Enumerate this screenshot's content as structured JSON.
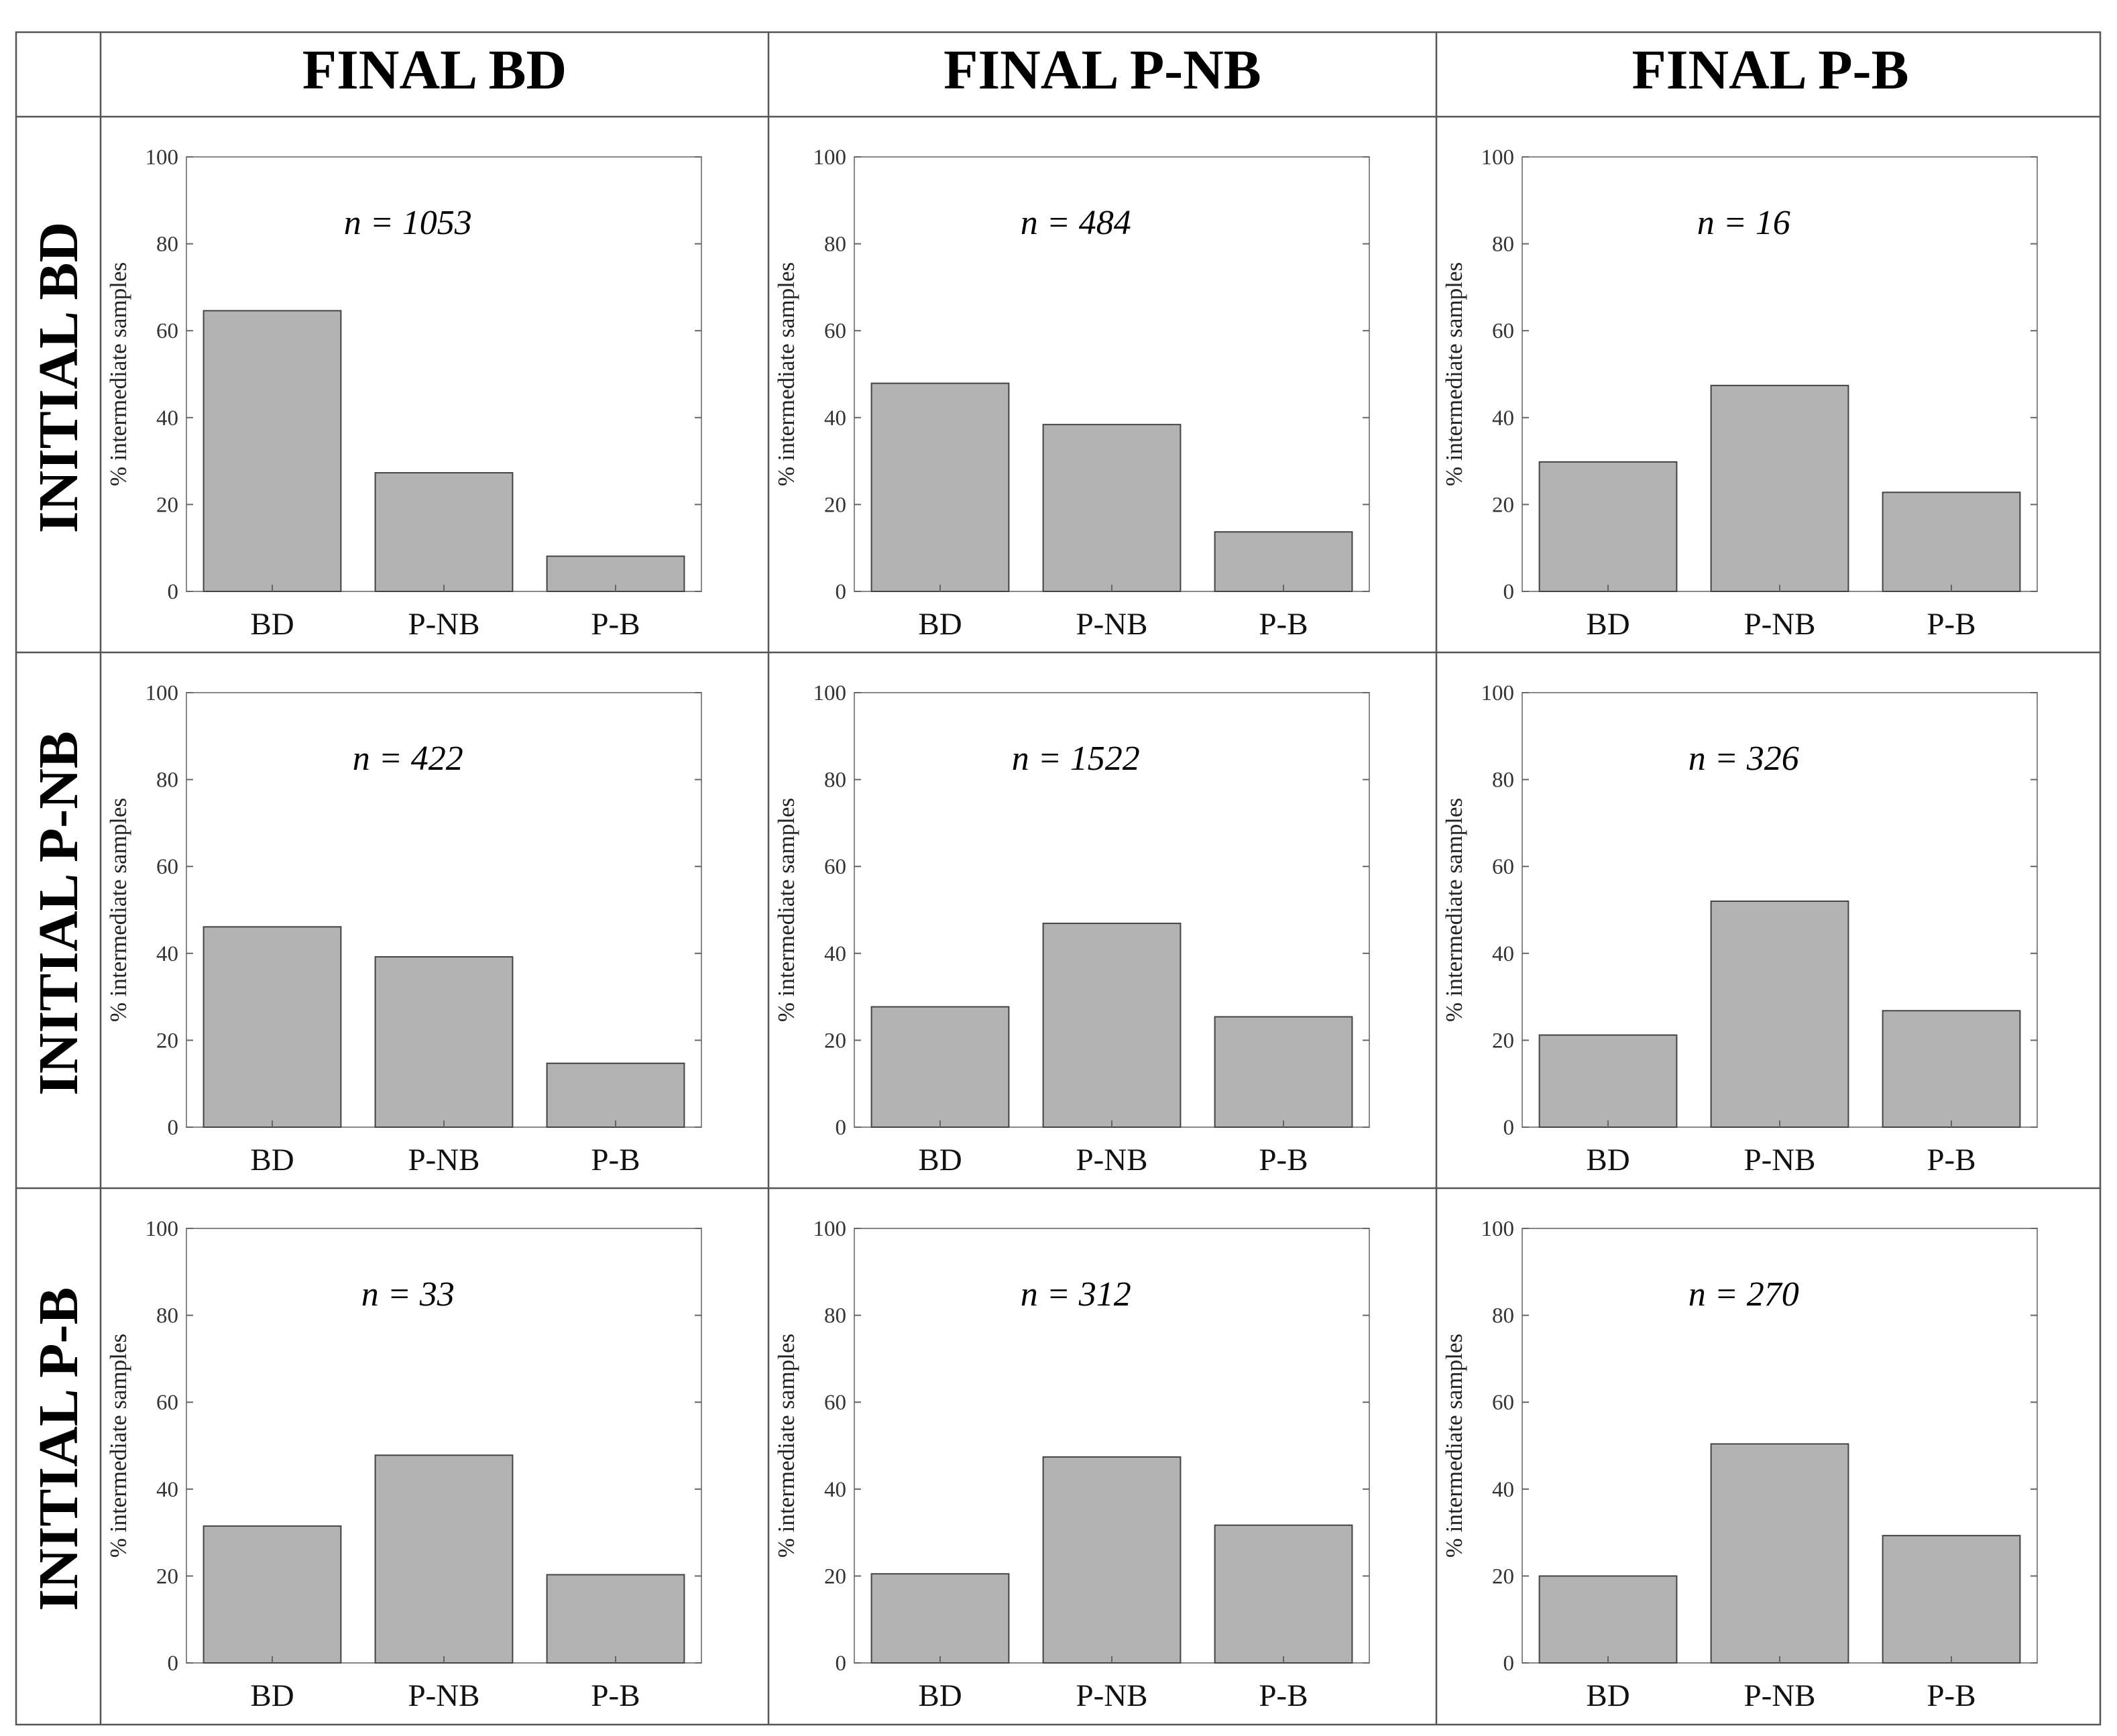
{
  "col_headers": [
    "FINAL BD",
    "FINAL P-NB",
    "FINAL P-B"
  ],
  "row_headers": [
    "INITIAL BD",
    "INITIAL P-NB",
    "INITIAL P-B"
  ],
  "chart_data": [
    {
      "type": "bar",
      "row": "INITIAL BD",
      "col": "FINAL BD",
      "annotation": "n = 1053",
      "categories": [
        "BD",
        "P-NB",
        "P-B"
      ],
      "values": [
        64.6,
        27.3,
        8.1
      ],
      "ylabel": "% intermediate samples",
      "ylim": [
        0,
        100
      ],
      "yticks": [
        "0",
        "20",
        "40",
        "60",
        "80",
        "100"
      ]
    },
    {
      "type": "bar",
      "row": "INITIAL BD",
      "col": "FINAL P-NB",
      "annotation": "n = 484",
      "categories": [
        "BD",
        "P-NB",
        "P-B"
      ],
      "values": [
        47.9,
        38.4,
        13.7
      ],
      "ylabel": "% intermediate samples",
      "ylim": [
        0,
        100
      ],
      "yticks": [
        "0",
        "20",
        "40",
        "60",
        "80",
        "100"
      ]
    },
    {
      "type": "bar",
      "row": "INITIAL BD",
      "col": "FINAL P-B",
      "annotation": "n = 16",
      "categories": [
        "BD",
        "P-NB",
        "P-B"
      ],
      "values": [
        29.8,
        47.4,
        22.8
      ],
      "ylabel": "% intermediate samples",
      "ylim": [
        0,
        100
      ],
      "yticks": [
        "0",
        "20",
        "40",
        "60",
        "80",
        "100"
      ]
    },
    {
      "type": "bar",
      "row": "INITIAL P-NB",
      "col": "FINAL BD",
      "annotation": "n = 422",
      "categories": [
        "BD",
        "P-NB",
        "P-B"
      ],
      "values": [
        46.1,
        39.2,
        14.7
      ],
      "ylabel": "% intermediate samples",
      "ylim": [
        0,
        100
      ],
      "yticks": [
        "0",
        "20",
        "40",
        "60",
        "80",
        "100"
      ]
    },
    {
      "type": "bar",
      "row": "INITIAL P-NB",
      "col": "FINAL P-NB",
      "annotation": "n = 1522",
      "categories": [
        "BD",
        "P-NB",
        "P-B"
      ],
      "values": [
        27.7,
        46.9,
        25.4
      ],
      "ylabel": "% intermediate samples",
      "ylim": [
        0,
        100
      ],
      "yticks": [
        "0",
        "20",
        "40",
        "60",
        "80",
        "100"
      ]
    },
    {
      "type": "bar",
      "row": "INITIAL P-NB",
      "col": "FINAL P-B",
      "annotation": "n = 326",
      "categories": [
        "BD",
        "P-NB",
        "P-B"
      ],
      "values": [
        21.2,
        52.0,
        26.8
      ],
      "ylabel": "% intermediate samples",
      "ylim": [
        0,
        100
      ],
      "yticks": [
        "0",
        "20",
        "40",
        "60",
        "80",
        "100"
      ]
    },
    {
      "type": "bar",
      "row": "INITIAL P-B",
      "col": "FINAL BD",
      "annotation": "n = 33",
      "categories": [
        "BD",
        "P-NB",
        "P-B"
      ],
      "values": [
        31.5,
        47.8,
        20.3
      ],
      "ylabel": "% intermediate samples",
      "ylim": [
        0,
        100
      ],
      "yticks": [
        "0",
        "20",
        "40",
        "60",
        "80",
        "100"
      ]
    },
    {
      "type": "bar",
      "row": "INITIAL P-B",
      "col": "FINAL P-NB",
      "annotation": "n = 312",
      "categories": [
        "BD",
        "P-NB",
        "P-B"
      ],
      "values": [
        20.5,
        47.4,
        31.7
      ],
      "ylabel": "% intermediate samples",
      "ylim": [
        0,
        100
      ],
      "yticks": [
        "0",
        "20",
        "40",
        "60",
        "80",
        "100"
      ]
    },
    {
      "type": "bar",
      "row": "INITIAL P-B",
      "col": "FINAL P-B",
      "annotation": "n = 270",
      "categories": [
        "BD",
        "P-NB",
        "P-B"
      ],
      "values": [
        20.0,
        50.4,
        29.3
      ],
      "ylabel": "% intermediate samples",
      "ylim": [
        0,
        100
      ],
      "yticks": [
        "0",
        "20",
        "40",
        "60",
        "80",
        "100"
      ]
    }
  ]
}
